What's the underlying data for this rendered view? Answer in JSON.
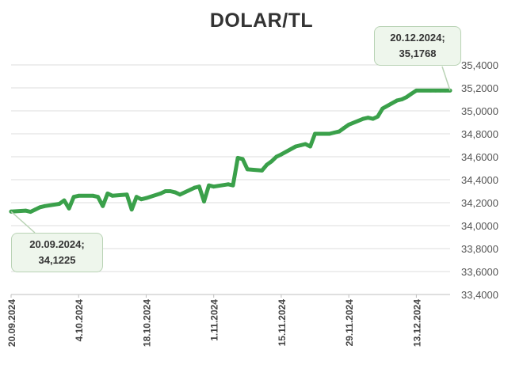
{
  "chart_data": {
    "type": "line",
    "title": "DOLAR/TL",
    "xlabel": "",
    "ylabel": "",
    "x_start": "20.09.2024",
    "x_end": "20.12.2024",
    "ylim": [
      33.4,
      35.4
    ],
    "x_ticks": [
      "20.09.2024",
      "4.10.2024",
      "18.10.2024",
      "1.11.2024",
      "15.11.2024",
      "29.11.2024",
      "13.12.2024"
    ],
    "y_ticks": [
      "35,4000",
      "35,2000",
      "35,0000",
      "34,8000",
      "34,6000",
      "34,4000",
      "34,2000",
      "34,0000",
      "33,8000",
      "33,6000",
      "33,4000"
    ],
    "y_tick_values": [
      35.4,
      35.2,
      35.0,
      34.8,
      34.6,
      34.4,
      34.2,
      34.0,
      33.8,
      33.6,
      33.4
    ],
    "grid": true,
    "legend": "none",
    "line_color": "#3aa04a",
    "series": [
      {
        "x": [
          "20.09.2024",
          "23.09.2024",
          "24.09.2024",
          "25.09.2024",
          "26.09.2024",
          "27.09.2024",
          "30.09.2024",
          "1.10.2024",
          "2.10.2024",
          "3.10.2024",
          "4.10.2024",
          "7.10.2024",
          "8.10.2024",
          "9.10.2024",
          "10.10.2024",
          "11.10.2024",
          "14.10.2024",
          "15.10.2024",
          "16.10.2024",
          "17.10.2024",
          "18.10.2024",
          "21.10.2024",
          "22.10.2024",
          "23.10.2024",
          "24.10.2024",
          "25.10.2024",
          "28.10.2024",
          "29.10.2024",
          "30.10.2024",
          "31.10.2024",
          "1.11.2024",
          "4.11.2024",
          "5.11.2024",
          "6.11.2024",
          "7.11.2024",
          "8.11.2024",
          "11.11.2024",
          "12.11.2024",
          "13.11.2024",
          "14.11.2024",
          "15.11.2024",
          "18.11.2024",
          "19.11.2024",
          "20.11.2024",
          "21.11.2024",
          "22.11.2024",
          "25.11.2024",
          "26.11.2024",
          "27.11.2024",
          "28.11.2024",
          "29.11.2024",
          "2.12.2024",
          "3.12.2024",
          "4.12.2024",
          "5.12.2024",
          "6.12.2024",
          "9.12.2024",
          "10.12.2024",
          "11.12.2024",
          "12.12.2024",
          "13.12.2024",
          "16.12.2024",
          "17.12.2024",
          "18.12.2024",
          "19.12.2024",
          "20.12.2024"
        ],
        "values": [
          34.1225,
          34.13,
          34.12,
          34.14,
          34.16,
          34.17,
          34.19,
          34.22,
          34.15,
          34.25,
          34.26,
          34.26,
          34.25,
          34.17,
          34.28,
          34.26,
          34.27,
          34.14,
          34.25,
          34.23,
          34.24,
          34.28,
          34.3,
          34.3,
          34.29,
          34.27,
          34.33,
          34.34,
          34.21,
          34.35,
          34.34,
          34.36,
          34.35,
          34.59,
          34.58,
          34.49,
          34.48,
          34.53,
          34.56,
          34.6,
          34.62,
          34.69,
          34.7,
          34.71,
          34.69,
          34.8,
          34.8,
          34.81,
          34.82,
          34.85,
          34.88,
          34.93,
          34.94,
          34.93,
          34.95,
          35.02,
          35.09,
          35.1,
          35.12,
          35.15,
          35.1768,
          35.1768,
          35.1768,
          35.1768,
          35.1768,
          35.1768
        ]
      }
    ],
    "annotations": [
      {
        "date": "20.09.2024;",
        "value": "34,1225"
      },
      {
        "date": "20.12.2024;",
        "value": "35,1768"
      }
    ]
  }
}
